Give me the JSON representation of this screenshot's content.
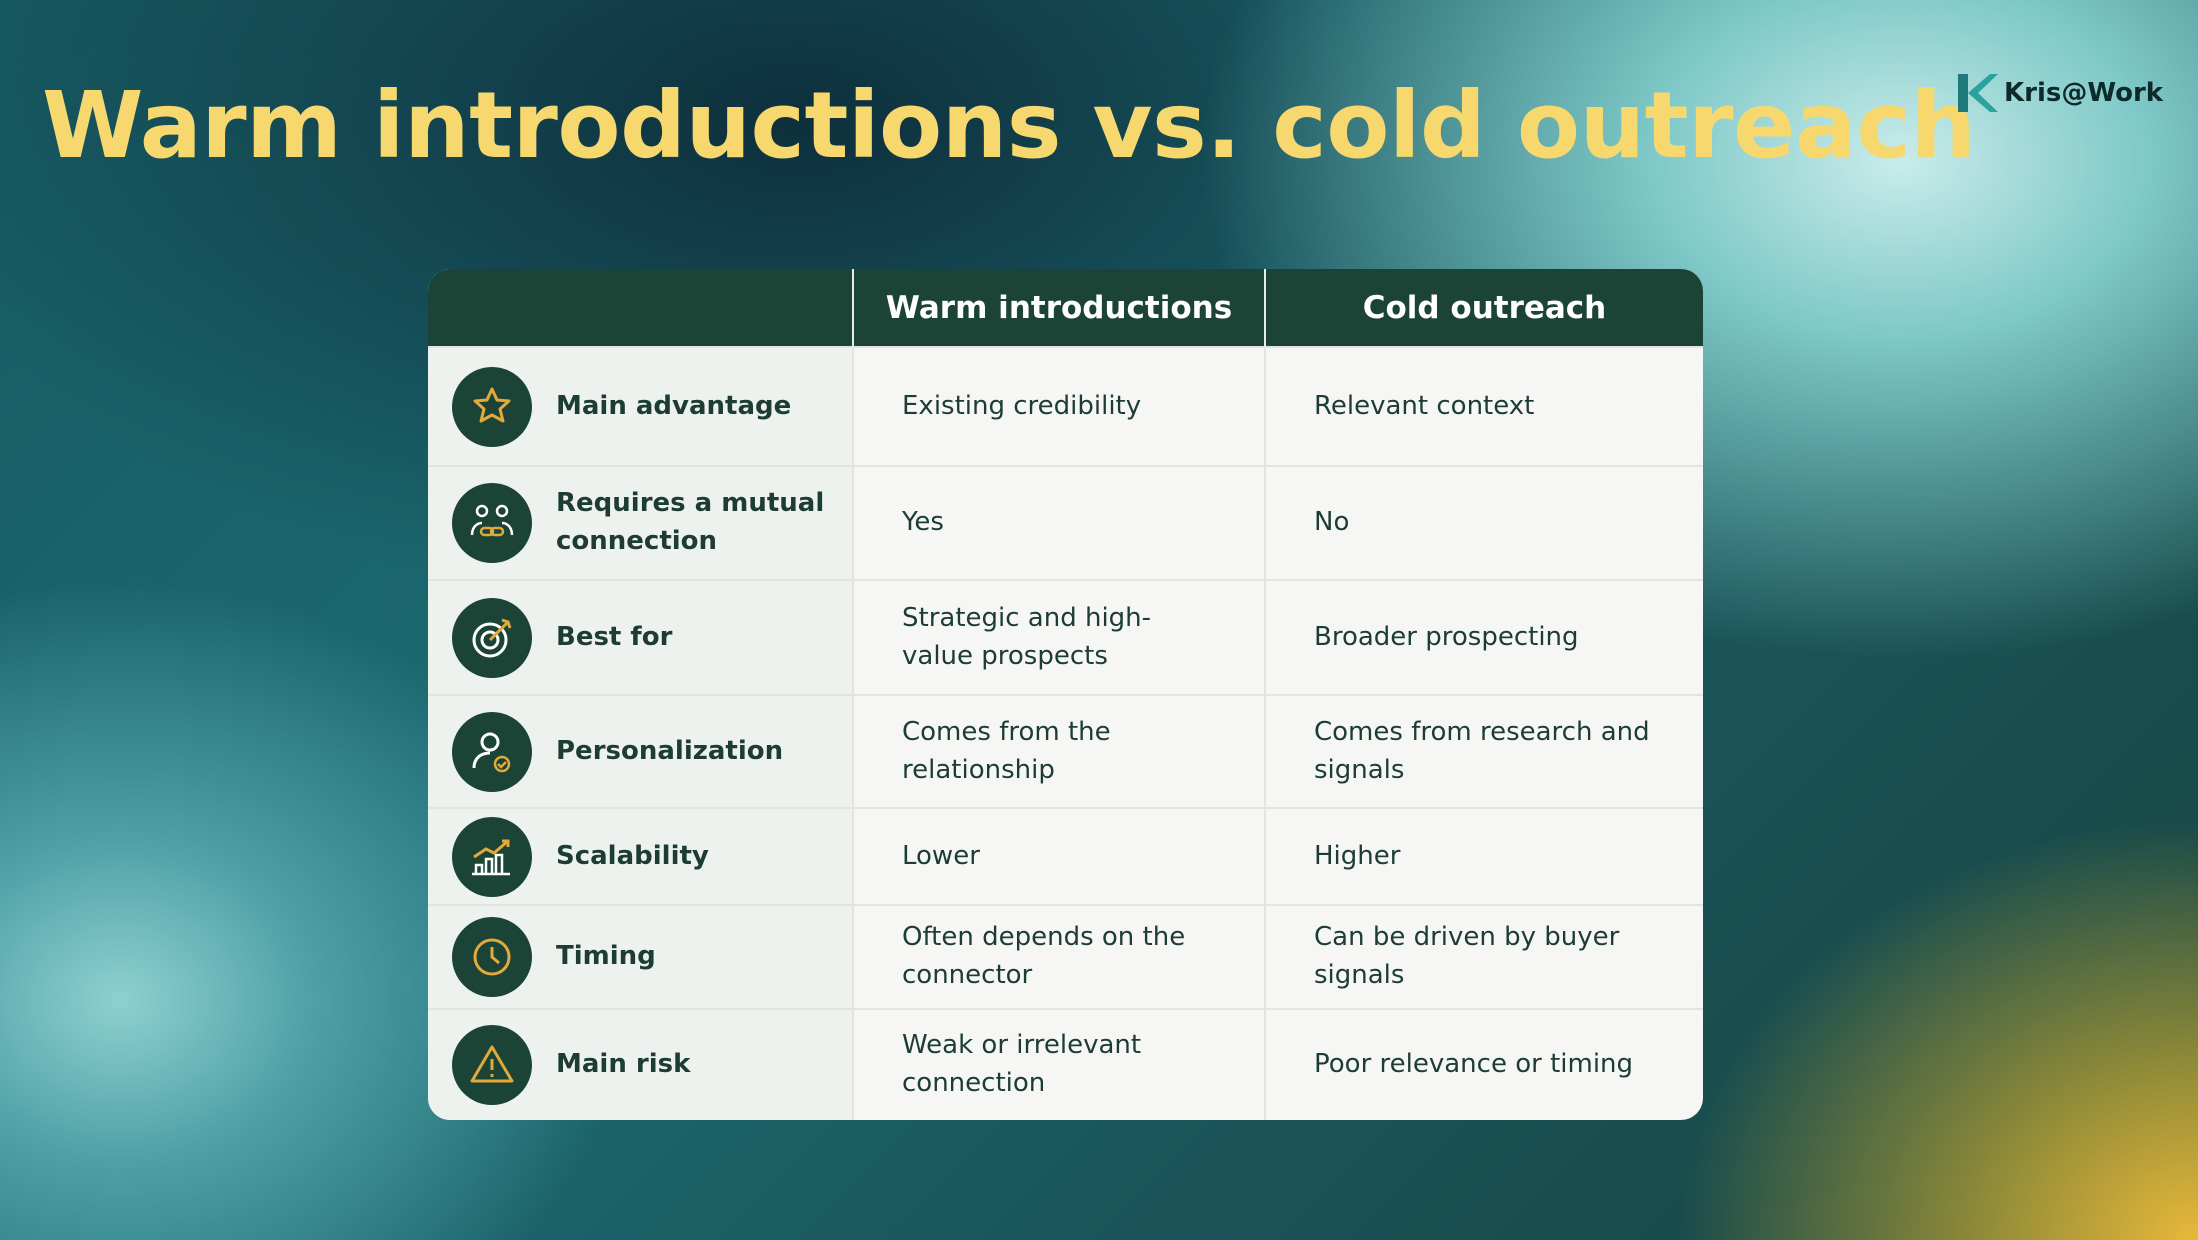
{
  "header": {
    "title": "Warm introductions vs. cold outreach",
    "logo": "Kris@Work"
  },
  "table": {
    "columns": [
      "Warm introductions",
      "Cold outreach"
    ],
    "rows": [
      [
        "Main advantage",
        "Existing credibility",
        "Relevant context"
      ],
      [
        "Requires a mutual connection",
        "Yes",
        "No"
      ],
      [
        "Best for",
        "Strategic and high-value prospects",
        "Broader prospecting"
      ],
      [
        "Personalization",
        "Comes from the relationship",
        "Comes from research and signals"
      ],
      [
        "Scalability",
        "Lower",
        "Higher"
      ],
      [
        "Timing",
        "Often depends on the connector",
        "Can be driven by buyer signals"
      ],
      [
        "Main risk",
        "Weak or irrelevant connection",
        "Poor relevance or timing"
      ]
    ]
  }
}
